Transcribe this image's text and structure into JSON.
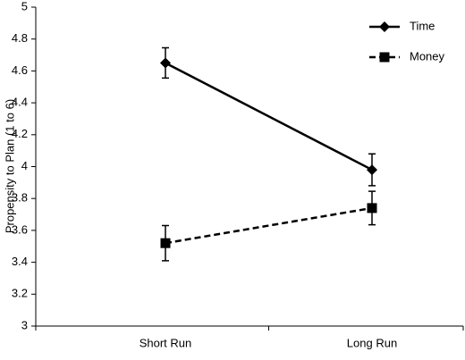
{
  "chart_data": {
    "type": "line",
    "y_label": "Propensity to Plan (1 to 6)",
    "categories": [
      "Short Run",
      "Long Run"
    ],
    "series": [
      {
        "name": "Time",
        "color": "#000000",
        "marker": "diamond",
        "dash": "solid",
        "values": [
          4.65,
          3.98
        ],
        "errors": [
          0.095,
          0.1
        ]
      },
      {
        "name": "Money",
        "color": "#000000",
        "marker": "square",
        "dash": "dashed",
        "values": [
          3.52,
          3.74
        ],
        "errors": [
          0.11,
          0.105
        ]
      }
    ],
    "ylim": [
      3,
      5
    ],
    "yticks": [
      3,
      3.2,
      3.4,
      3.6,
      3.8,
      4,
      4.2,
      4.4,
      4.6,
      4.8,
      5
    ],
    "legend": "upper right"
  }
}
